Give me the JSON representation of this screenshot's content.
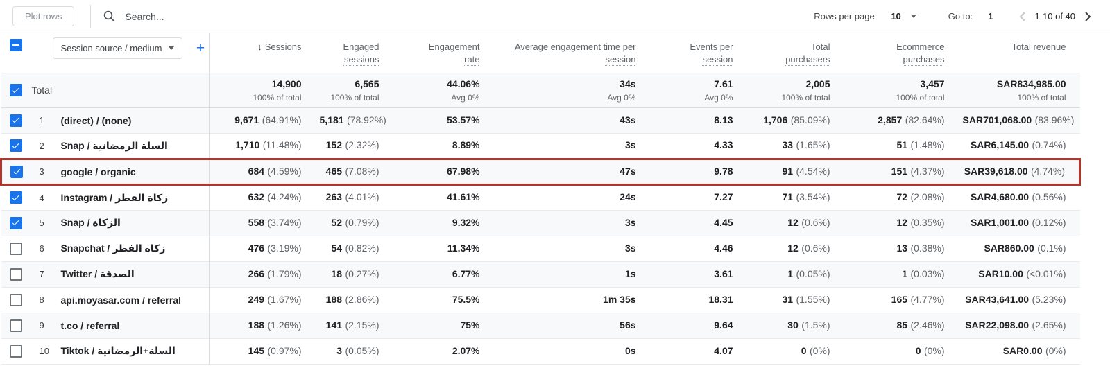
{
  "toolbar": {
    "plot_rows_label": "Plot rows",
    "search_placeholder": "Search...",
    "rows_per_page_label": "Rows per page:",
    "rows_per_page_value": "10",
    "goto_label": "Go to:",
    "goto_value": "1",
    "range_text": "1-10 of 40"
  },
  "colors": {
    "accent": "#1a73e8",
    "highlight_border": "#b0352c",
    "row_stripe": "#f8f9fa"
  },
  "icons": {
    "sort_descending": "↓",
    "add_dimension": "+",
    "dropdown_caret": "▾",
    "search": "magnifier",
    "prev_page": "chevron-left",
    "next_page": "chevron-right"
  },
  "table": {
    "dimension_selector_label": "Session source / medium",
    "total_label": "Total",
    "columns": [
      {
        "label": "Sessions",
        "sorted": true
      },
      {
        "label": "Engaged sessions"
      },
      {
        "label": "Engagement rate"
      },
      {
        "label": "Average engagement time per session"
      },
      {
        "label": "Events per session"
      },
      {
        "label": "Total purchasers"
      },
      {
        "label": "Ecommerce purchases"
      },
      {
        "label": "Total revenue"
      }
    ],
    "totals": [
      {
        "value": "14,900",
        "sub": "100% of total"
      },
      {
        "value": "6,565",
        "sub": "100% of total"
      },
      {
        "value": "44.06%",
        "sub": "Avg 0%"
      },
      {
        "value": "34s",
        "sub": "Avg 0%"
      },
      {
        "value": "7.61",
        "sub": "Avg 0%"
      },
      {
        "value": "2,005",
        "sub": "100% of total"
      },
      {
        "value": "3,457",
        "sub": "100% of total"
      },
      {
        "value": "SAR834,985.00",
        "sub": "100% of total"
      }
    ],
    "rows": [
      {
        "num": "1",
        "checked": true,
        "highlighted": false,
        "dimension": "(direct) / (none)",
        "values": [
          {
            "value": "9,671",
            "share": "(64.91%)"
          },
          {
            "value": "5,181",
            "share": "(78.92%)"
          },
          {
            "value": "53.57%"
          },
          {
            "value": "43s"
          },
          {
            "value": "8.13"
          },
          {
            "value": "1,706",
            "share": "(85.09%)"
          },
          {
            "value": "2,857",
            "share": "(82.64%)"
          },
          {
            "value": "SAR701,068.00",
            "share": "(83.96%)"
          }
        ]
      },
      {
        "num": "2",
        "checked": true,
        "highlighted": false,
        "dimension": "Snap / السلة الرمضانية",
        "values": [
          {
            "value": "1,710",
            "share": "(11.48%)"
          },
          {
            "value": "152",
            "share": "(2.32%)"
          },
          {
            "value": "8.89%"
          },
          {
            "value": "3s"
          },
          {
            "value": "4.33"
          },
          {
            "value": "33",
            "share": "(1.65%)"
          },
          {
            "value": "51",
            "share": "(1.48%)"
          },
          {
            "value": "SAR6,145.00",
            "share": "(0.74%)"
          }
        ]
      },
      {
        "num": "3",
        "checked": true,
        "highlighted": true,
        "dimension": "google / organic",
        "values": [
          {
            "value": "684",
            "share": "(4.59%)"
          },
          {
            "value": "465",
            "share": "(7.08%)"
          },
          {
            "value": "67.98%"
          },
          {
            "value": "47s"
          },
          {
            "value": "9.78"
          },
          {
            "value": "91",
            "share": "(4.54%)"
          },
          {
            "value": "151",
            "share": "(4.37%)"
          },
          {
            "value": "SAR39,618.00",
            "share": "(4.74%)"
          }
        ]
      },
      {
        "num": "4",
        "checked": true,
        "highlighted": false,
        "dimension": "Instagram / زكاة الفطر",
        "values": [
          {
            "value": "632",
            "share": "(4.24%)"
          },
          {
            "value": "263",
            "share": "(4.01%)"
          },
          {
            "value": "41.61%"
          },
          {
            "value": "24s"
          },
          {
            "value": "7.27"
          },
          {
            "value": "71",
            "share": "(3.54%)"
          },
          {
            "value": "72",
            "share": "(2.08%)"
          },
          {
            "value": "SAR4,680.00",
            "share": "(0.56%)"
          }
        ]
      },
      {
        "num": "5",
        "checked": true,
        "highlighted": false,
        "dimension": "Snap / الزكاة",
        "values": [
          {
            "value": "558",
            "share": "(3.74%)"
          },
          {
            "value": "52",
            "share": "(0.79%)"
          },
          {
            "value": "9.32%"
          },
          {
            "value": "3s"
          },
          {
            "value": "4.45"
          },
          {
            "value": "12",
            "share": "(0.6%)"
          },
          {
            "value": "12",
            "share": "(0.35%)"
          },
          {
            "value": "SAR1,001.00",
            "share": "(0.12%)"
          }
        ]
      },
      {
        "num": "6",
        "checked": false,
        "highlighted": false,
        "dimension": "Snapchat / زكاة الفطر",
        "values": [
          {
            "value": "476",
            "share": "(3.19%)"
          },
          {
            "value": "54",
            "share": "(0.82%)"
          },
          {
            "value": "11.34%"
          },
          {
            "value": "3s"
          },
          {
            "value": "4.46"
          },
          {
            "value": "12",
            "share": "(0.6%)"
          },
          {
            "value": "13",
            "share": "(0.38%)"
          },
          {
            "value": "SAR860.00",
            "share": "(0.1%)"
          }
        ]
      },
      {
        "num": "7",
        "checked": false,
        "highlighted": false,
        "dimension": "Twitter / الصدقة",
        "values": [
          {
            "value": "266",
            "share": "(1.79%)"
          },
          {
            "value": "18",
            "share": "(0.27%)"
          },
          {
            "value": "6.77%"
          },
          {
            "value": "1s"
          },
          {
            "value": "3.61"
          },
          {
            "value": "1",
            "share": "(0.05%)"
          },
          {
            "value": "1",
            "share": "(0.03%)"
          },
          {
            "value": "SAR10.00",
            "share": "(<0.01%)"
          }
        ]
      },
      {
        "num": "8",
        "checked": false,
        "highlighted": false,
        "dimension": "api.moyasar.com / referral",
        "values": [
          {
            "value": "249",
            "share": "(1.67%)"
          },
          {
            "value": "188",
            "share": "(2.86%)"
          },
          {
            "value": "75.5%"
          },
          {
            "value": "1m 35s"
          },
          {
            "value": "18.31"
          },
          {
            "value": "31",
            "share": "(1.55%)"
          },
          {
            "value": "165",
            "share": "(4.77%)"
          },
          {
            "value": "SAR43,641.00",
            "share": "(5.23%)"
          }
        ]
      },
      {
        "num": "9",
        "checked": false,
        "highlighted": false,
        "dimension": "t.co / referral",
        "values": [
          {
            "value": "188",
            "share": "(1.26%)"
          },
          {
            "value": "141",
            "share": "(2.15%)"
          },
          {
            "value": "75%"
          },
          {
            "value": "56s"
          },
          {
            "value": "9.64"
          },
          {
            "value": "30",
            "share": "(1.5%)"
          },
          {
            "value": "85",
            "share": "(2.46%)"
          },
          {
            "value": "SAR22,098.00",
            "share": "(2.65%)"
          }
        ]
      },
      {
        "num": "10",
        "checked": false,
        "highlighted": false,
        "dimension": "Tiktok / السلة+الرمضانية",
        "values": [
          {
            "value": "145",
            "share": "(0.97%)"
          },
          {
            "value": "3",
            "share": "(0.05%)"
          },
          {
            "value": "2.07%"
          },
          {
            "value": "0s"
          },
          {
            "value": "4.07"
          },
          {
            "value": "0",
            "share": "(0%)"
          },
          {
            "value": "0",
            "share": "(0%)"
          },
          {
            "value": "SAR0.00",
            "share": "(0%)"
          }
        ]
      }
    ]
  }
}
